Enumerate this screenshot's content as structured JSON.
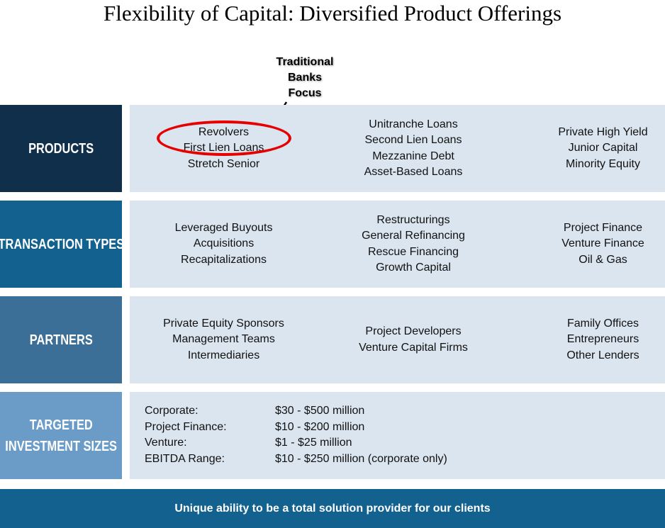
{
  "title": "Flexibility of Capital: Diversified Product Offerings",
  "callout": {
    "lines": [
      "Traditional",
      "Banks",
      "Focus"
    ]
  },
  "colors": {
    "products_label": "#0f2f4a",
    "transaction_label": "#12618f",
    "partners_label": "#3b6f97",
    "sizes_label": "#6b9cc7",
    "content_bg": "#dbe5ef",
    "footer_bg": "#12618f",
    "highlight_oval": "#e60000"
  },
  "rows": {
    "products": {
      "label": [
        "PRODUCTS"
      ],
      "col1": [
        "Revolvers",
        "First Lien Loans",
        "Stretch Senior"
      ],
      "col2": [
        "Unitranche Loans",
        "Second Lien Loans",
        "Mezzanine Debt",
        "Asset-Based Loans"
      ],
      "col3": [
        "Private High Yield",
        "Junior Capital",
        "Minority Equity"
      ]
    },
    "transaction_types": {
      "label": [
        "TRANSACTION TYPES"
      ],
      "col1": [
        "Leveraged Buyouts",
        "Acquisitions",
        "Recapitalizations"
      ],
      "col2": [
        "Restructurings",
        "General Refinancing",
        "Rescue Financing",
        "Growth Capital"
      ],
      "col3": [
        "Project Finance",
        "Venture Finance",
        "Oil & Gas"
      ]
    },
    "partners": {
      "label": [
        "PARTNERS"
      ],
      "col1": [
        "Private Equity Sponsors",
        "Management Teams",
        "Intermediaries"
      ],
      "col2": [
        "Project Developers",
        "Venture Capital Firms"
      ],
      "col3": [
        "Family Offices",
        "Entrepreneurs",
        "Other Lenders"
      ]
    },
    "sizes": {
      "label": [
        "TARGETED",
        "INVESTMENT SIZES"
      ],
      "items": [
        {
          "label": "Corporate:",
          "value": "$30 - $500 million"
        },
        {
          "label": "Project Finance:",
          "value": "$10 - $200 million"
        },
        {
          "label": "Venture:",
          "value": "$1 - $25 million"
        },
        {
          "label": "EBITDA Range:",
          "value": "$10 - $250 million (corporate only)"
        }
      ]
    }
  },
  "footer": "Unique ability to be a total solution provider for our clients"
}
